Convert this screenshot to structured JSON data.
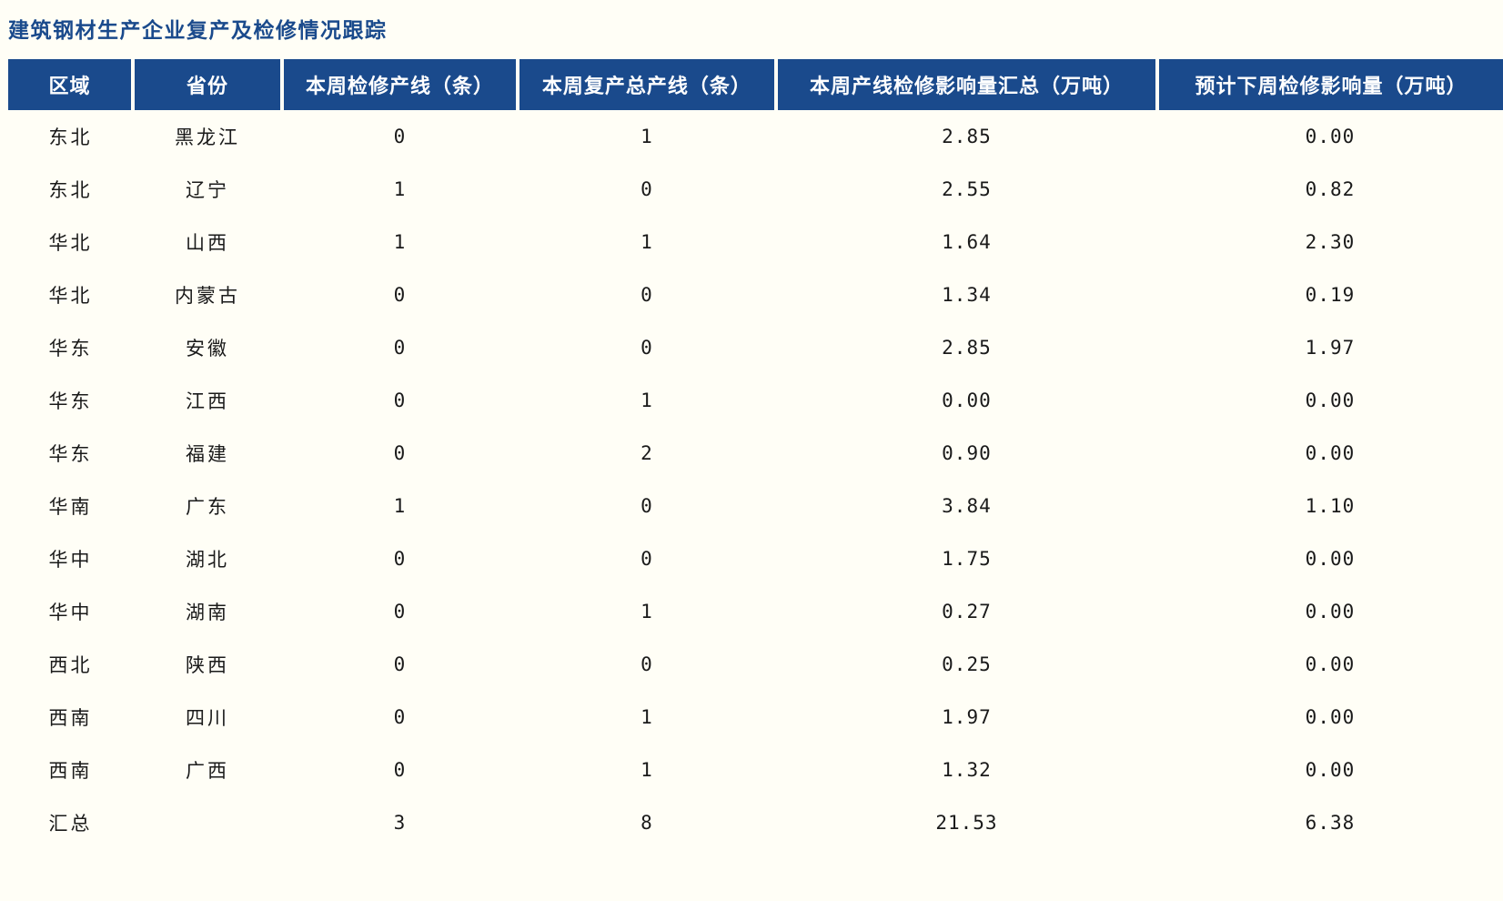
{
  "page_title": "建筑钢材生产企业复产及检修情况跟踪",
  "colors": {
    "header_background": "#1a4a8c",
    "header_text": "#ffffff",
    "title_text": "#1a4a8c",
    "page_background": "#fffef6",
    "body_text": "#1a1a1a"
  },
  "chart_data": {
    "type": "table",
    "title": "建筑钢材生产企业复产及检修情况跟踪",
    "columns": [
      "区域",
      "省份",
      "本周检修产线（条）",
      "本周复产总产线（条）",
      "本周产线检修影响量汇总（万吨）",
      "预计下周检修影响量（万吨）"
    ],
    "rows": [
      [
        "东北",
        "黑龙江",
        "0",
        "1",
        "2.85",
        "0.00"
      ],
      [
        "东北",
        "辽宁",
        "1",
        "0",
        "2.55",
        "0.82"
      ],
      [
        "华北",
        "山西",
        "1",
        "1",
        "1.64",
        "2.30"
      ],
      [
        "华北",
        "内蒙古",
        "0",
        "0",
        "1.34",
        "0.19"
      ],
      [
        "华东",
        "安徽",
        "0",
        "0",
        "2.85",
        "1.97"
      ],
      [
        "华东",
        "江西",
        "0",
        "1",
        "0.00",
        "0.00"
      ],
      [
        "华东",
        "福建",
        "0",
        "2",
        "0.90",
        "0.00"
      ],
      [
        "华南",
        "广东",
        "1",
        "0",
        "3.84",
        "1.10"
      ],
      [
        "华中",
        "湖北",
        "0",
        "0",
        "1.75",
        "0.00"
      ],
      [
        "华中",
        "湖南",
        "0",
        "1",
        "0.27",
        "0.00"
      ],
      [
        "西北",
        "陕西",
        "0",
        "0",
        "0.25",
        "0.00"
      ],
      [
        "西南",
        "四川",
        "0",
        "1",
        "1.97",
        "0.00"
      ],
      [
        "西南",
        "广西",
        "0",
        "1",
        "1.32",
        "0.00"
      ],
      [
        "汇总",
        "",
        "3",
        "8",
        "21.53",
        "6.38"
      ]
    ]
  }
}
